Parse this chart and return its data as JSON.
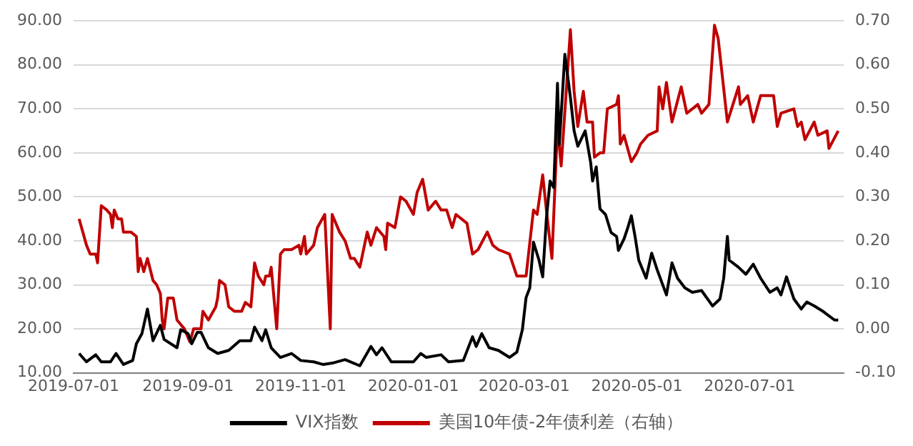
{
  "chart_data": {
    "type": "line",
    "legend": "bottom",
    "grid": "y",
    "marker": "none",
    "line_style": "solid",
    "xlim": [
      "2019-07-01",
      "2020-08-21"
    ],
    "xticks": [
      "2019-07-01",
      "2019-09-01",
      "2019-11-01",
      "2020-01-01",
      "2020-03-01",
      "2020-05-01",
      "2020-07-01"
    ],
    "ylim": [
      10,
      90
    ],
    "yticks": [
      {
        "value": 10,
        "label": "10.00"
      },
      {
        "value": 20,
        "label": "20.00"
      },
      {
        "value": 30,
        "label": "30.00"
      },
      {
        "value": 40,
        "label": "40.00"
      },
      {
        "value": 50,
        "label": "50.00"
      },
      {
        "value": 60,
        "label": "60.00"
      },
      {
        "value": 70,
        "label": "70.00"
      },
      {
        "value": 80,
        "label": "80.00"
      },
      {
        "value": 90,
        "label": "90.00"
      }
    ],
    "y2lim": [
      -0.1,
      0.7
    ],
    "y2ticks": [
      {
        "value": -0.1,
        "label": "-0.10"
      },
      {
        "value": 0,
        "label": "0.00"
      },
      {
        "value": 0.1,
        "label": "0.10"
      },
      {
        "value": 0.2,
        "label": "0.20"
      },
      {
        "value": 0.3,
        "label": "0.30"
      },
      {
        "value": 0.4,
        "label": "0.40"
      },
      {
        "value": 0.5,
        "label": "0.50"
      },
      {
        "value": 0.6,
        "label": "0.60"
      },
      {
        "value": 0.7,
        "label": "0.70"
      }
    ],
    "series": [
      {
        "name": "VIX指数",
        "color": "#000000",
        "x": [
          "2019-07-04",
          "2019-07-08",
          "2019-07-13",
          "2019-07-16",
          "2019-07-21",
          "2019-07-24",
          "2019-07-28",
          "2019-08-02",
          "2019-08-04",
          "2019-08-07",
          "2019-08-10",
          "2019-08-13",
          "2019-08-17",
          "2019-08-19",
          "2019-08-26",
          "2019-08-28",
          "2019-09-01",
          "2019-09-03",
          "2019-09-06",
          "2019-09-08",
          "2019-09-12",
          "2019-09-17",
          "2019-09-23",
          "2019-09-29",
          "2019-10-05",
          "2019-10-07",
          "2019-10-11",
          "2019-10-13",
          "2019-10-16",
          "2019-10-21",
          "2019-10-27",
          "2019-11-01",
          "2019-11-08",
          "2019-11-13",
          "2019-11-18",
          "2019-11-25",
          "2019-12-03",
          "2019-12-09",
          "2019-12-12",
          "2019-12-15",
          "2019-12-20",
          "2020-01-01",
          "2020-01-05",
          "2020-01-08",
          "2020-01-16",
          "2020-01-20",
          "2020-01-28",
          "2020-02-02",
          "2020-02-04",
          "2020-02-07",
          "2020-02-11",
          "2020-02-16",
          "2020-02-22",
          "2020-02-26",
          "2020-02-29",
          "2020-03-02",
          "2020-03-04",
          "2020-03-06",
          "2020-03-09",
          "2020-03-11",
          "2020-03-13",
          "2020-03-15",
          "2020-03-17",
          "2020-03-19",
          "2020-03-20",
          "2020-03-23",
          "2020-03-26",
          "2020-03-28",
          "2020-03-30",
          "2020-04-03",
          "2020-04-06",
          "2020-04-07",
          "2020-04-09",
          "2020-04-11",
          "2020-04-14",
          "2020-04-17",
          "2020-04-20",
          "2020-04-21",
          "2020-04-24",
          "2020-04-26",
          "2020-04-28",
          "2020-04-30",
          "2020-05-02",
          "2020-05-06",
          "2020-05-09",
          "2020-05-12",
          "2020-05-17",
          "2020-05-20",
          "2020-05-23",
          "2020-05-27",
          "2020-05-31",
          "2020-06-05",
          "2020-06-11",
          "2020-06-15",
          "2020-06-17",
          "2020-06-19",
          "2020-06-20",
          "2020-06-25",
          "2020-06-29",
          "2020-07-03",
          "2020-07-07",
          "2020-07-12",
          "2020-07-16",
          "2020-07-18",
          "2020-07-21",
          "2020-07-25",
          "2020-07-29",
          "2020-08-01",
          "2020-08-05",
          "2020-08-10",
          "2020-08-16",
          "2020-08-18"
        ],
        "values": [
          14.4,
          12.5,
          14.1,
          12.5,
          12.5,
          14.4,
          11.9,
          12.8,
          16.6,
          18.9,
          24.5,
          17.3,
          20.8,
          17.6,
          15.7,
          19.8,
          18.9,
          16.6,
          19.2,
          19.2,
          15.7,
          14.4,
          15.1,
          17.3,
          17.3,
          20.4,
          17.3,
          19.8,
          15.7,
          13.5,
          14.4,
          12.8,
          12.5,
          11.9,
          12.2,
          13.0,
          11.6,
          16.0,
          14.1,
          15.7,
          12.5,
          12.5,
          14.4,
          13.5,
          14.1,
          12.5,
          12.8,
          18.2,
          16.0,
          18.9,
          15.7,
          15.1,
          13.5,
          14.7,
          19.8,
          27.1,
          29.3,
          39.7,
          35.6,
          31.8,
          45.1,
          53.6,
          52.1,
          75.8,
          61.9,
          82.4,
          72.6,
          65.0,
          61.5,
          65.0,
          57.7,
          53.6,
          56.8,
          47.3,
          46.0,
          41.9,
          41.0,
          37.8,
          40.4,
          42.9,
          45.7,
          41.0,
          35.6,
          31.5,
          37.2,
          33.4,
          27.7,
          35.0,
          31.5,
          29.3,
          28.3,
          28.7,
          25.2,
          26.8,
          31.5,
          41.0,
          35.6,
          34.0,
          32.4,
          34.7,
          31.5,
          28.3,
          29.3,
          27.7,
          31.8,
          26.8,
          24.5,
          26.1,
          25.2,
          23.9,
          22.0,
          22.0
        ]
      },
      {
        "name": "美国10年债-2年债利差（右轴）",
        "color": "#c00000",
        "axis": "y2",
        "x": [
          "2019-07-04",
          "2019-07-08",
          "2019-07-10",
          "2019-07-13",
          "2019-07-14",
          "2019-07-16",
          "2019-07-19",
          "2019-07-21",
          "2019-07-22",
          "2019-07-23",
          "2019-07-25",
          "2019-07-27",
          "2019-07-28",
          "2019-08-01",
          "2019-08-04",
          "2019-08-05",
          "2019-08-06",
          "2019-08-08",
          "2019-08-10",
          "2019-08-13",
          "2019-08-15",
          "2019-08-17",
          "2019-08-18",
          "2019-08-19",
          "2019-08-21",
          "2019-08-24",
          "2019-08-26",
          "2019-08-30",
          "2019-09-02",
          "2019-09-04",
          "2019-09-08",
          "2019-09-09",
          "2019-09-12",
          "2019-09-16",
          "2019-09-17",
          "2019-09-18",
          "2019-09-21",
          "2019-09-23",
          "2019-09-26",
          "2019-09-30",
          "2019-10-02",
          "2019-10-05",
          "2019-10-07",
          "2019-10-09",
          "2019-10-12",
          "2019-10-13",
          "2019-10-15",
          "2019-10-16",
          "2019-10-19",
          "2019-10-21",
          "2019-10-23",
          "2019-10-27",
          "2019-10-31",
          "2019-11-01",
          "2019-11-03",
          "2019-11-04",
          "2019-11-08",
          "2019-11-10",
          "2019-11-14",
          "2019-11-17",
          "2019-11-18",
          "2019-11-22",
          "2019-11-25",
          "2019-11-28",
          "2019-11-30",
          "2019-12-03",
          "2019-12-07",
          "2019-12-09",
          "2019-12-12",
          "2019-12-16",
          "2019-12-17",
          "2019-12-18",
          "2019-12-22",
          "2019-12-25",
          "2019-12-28",
          "2020-01-01",
          "2020-01-03",
          "2020-01-06",
          "2020-01-09",
          "2020-01-13",
          "2020-01-16",
          "2020-01-19",
          "2020-01-22",
          "2020-01-24",
          "2020-01-30",
          "2020-02-02",
          "2020-02-05",
          "2020-02-10",
          "2020-02-13",
          "2020-02-16",
          "2020-02-22",
          "2020-02-26",
          "2020-03-02",
          "2020-03-06",
          "2020-03-08",
          "2020-03-11",
          "2020-03-13",
          "2020-03-16",
          "2020-03-19",
          "2020-03-21",
          "2020-03-26",
          "2020-03-28",
          "2020-03-30",
          "2020-04-02",
          "2020-04-04",
          "2020-04-07",
          "2020-04-08",
          "2020-04-11",
          "2020-04-13",
          "2020-04-15",
          "2020-04-20",
          "2020-04-21",
          "2020-04-22",
          "2020-04-24",
          "2020-04-26",
          "2020-04-28",
          "2020-05-01",
          "2020-05-03",
          "2020-05-07",
          "2020-05-12",
          "2020-05-13",
          "2020-05-15",
          "2020-05-17",
          "2020-05-20",
          "2020-05-25",
          "2020-05-28",
          "2020-06-03",
          "2020-06-05",
          "2020-06-09",
          "2020-06-12",
          "2020-06-14",
          "2020-06-19",
          "2020-06-22",
          "2020-06-25",
          "2020-06-26",
          "2020-06-30",
          "2020-07-03",
          "2020-07-07",
          "2020-07-14",
          "2020-07-16",
          "2020-07-18",
          "2020-07-25",
          "2020-07-27",
          "2020-07-29",
          "2020-07-31",
          "2020-08-05",
          "2020-08-07",
          "2020-08-12",
          "2020-08-13",
          "2020-08-18"
        ],
        "values": [
          0.25,
          0.19,
          0.17,
          0.17,
          0.15,
          0.28,
          0.27,
          0.26,
          0.23,
          0.27,
          0.25,
          0.25,
          0.22,
          0.22,
          0.21,
          0.13,
          0.16,
          0.13,
          0.16,
          0.11,
          0.1,
          0.08,
          0.02,
          0.0,
          0.07,
          0.07,
          0.02,
          0.0,
          -0.03,
          0.0,
          0.0,
          0.04,
          0.02,
          0.05,
          0.07,
          0.11,
          0.1,
          0.05,
          0.04,
          0.04,
          0.06,
          0.05,
          0.15,
          0.12,
          0.1,
          0.12,
          0.12,
          0.14,
          0.0,
          0.17,
          0.18,
          0.18,
          0.19,
          0.17,
          0.21,
          0.17,
          0.19,
          0.23,
          0.26,
          0.0,
          0.26,
          0.22,
          0.2,
          0.16,
          0.16,
          0.14,
          0.22,
          0.19,
          0.23,
          0.21,
          0.18,
          0.24,
          0.23,
          0.3,
          0.29,
          0.26,
          0.31,
          0.34,
          0.27,
          0.29,
          0.27,
          0.27,
          0.23,
          0.26,
          0.24,
          0.17,
          0.18,
          0.22,
          0.19,
          0.18,
          0.17,
          0.12,
          0.12,
          0.27,
          0.26,
          0.35,
          0.27,
          0.16,
          0.46,
          0.37,
          0.68,
          0.54,
          0.46,
          0.54,
          0.47,
          0.47,
          0.39,
          0.4,
          0.4,
          0.5,
          0.51,
          0.53,
          0.42,
          0.44,
          0.41,
          0.38,
          0.4,
          0.42,
          0.44,
          0.45,
          0.55,
          0.5,
          0.56,
          0.47,
          0.55,
          0.49,
          0.51,
          0.49,
          0.51,
          0.69,
          0.66,
          0.47,
          0.51,
          0.55,
          0.51,
          0.53,
          0.47,
          0.53,
          0.53,
          0.46,
          0.49,
          0.5,
          0.46,
          0.47,
          0.43,
          0.47,
          0.44,
          0.45,
          0.41,
          0.45
        ]
      }
    ]
  }
}
